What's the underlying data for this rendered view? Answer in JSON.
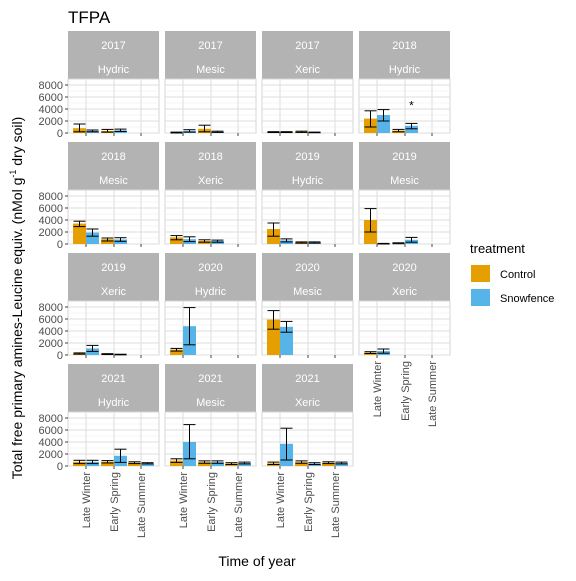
{
  "chart_data": {
    "type": "bar",
    "title": "TFPA",
    "xlabel": "Time of year",
    "ylabel_main": "Total free primary amines-Leucine equiv. (nMol g",
    "ylabel_sup": "-1",
    "ylabel_tail": " dry soil)",
    "categories": [
      "Late Winter",
      "Early Spring",
      "Late Summer"
    ],
    "y_ticks": [
      0,
      2000,
      4000,
      6000,
      8000
    ],
    "ylim": [
      0,
      9000
    ],
    "grid": true,
    "legend": {
      "title": "treatment",
      "position": "right",
      "entries": [
        {
          "label": "Control",
          "color": "#E69F00"
        },
        {
          "label": "Snowfence",
          "color": "#56B4E9"
        }
      ]
    },
    "strip_color": "#b3b3b3",
    "panels": [
      {
        "year": "2017",
        "site": "Hydric",
        "control": [
          {
            "v": 800,
            "lo": 200,
            "hi": 1500
          },
          {
            "v": 350,
            "lo": 150,
            "hi": 600
          },
          null
        ],
        "snowfence": [
          {
            "v": 350,
            "lo": 200,
            "hi": 500
          },
          {
            "v": 450,
            "lo": 250,
            "hi": 650
          },
          null
        ]
      },
      {
        "year": "2017",
        "site": "Mesic",
        "control": [
          {
            "v": 80,
            "lo": 0,
            "hi": 150
          },
          {
            "v": 700,
            "lo": 200,
            "hi": 1300
          },
          null
        ],
        "snowfence": [
          {
            "v": 350,
            "lo": 150,
            "hi": 550
          },
          {
            "v": 200,
            "lo": 100,
            "hi": 300
          },
          null
        ]
      },
      {
        "year": "2017",
        "site": "Xeric",
        "control": [
          {
            "v": 150,
            "lo": 80,
            "hi": 220
          },
          {
            "v": 200,
            "lo": 100,
            "hi": 300
          },
          null
        ],
        "snowfence": [
          {
            "v": 150,
            "lo": 80,
            "hi": 220
          },
          {
            "v": 100,
            "lo": 50,
            "hi": 150
          },
          null
        ]
      },
      {
        "year": "2018",
        "site": "Hydric",
        "control": [
          {
            "v": 2400,
            "lo": 1000,
            "hi": 3700
          },
          {
            "v": 400,
            "lo": 200,
            "hi": 600
          },
          null
        ],
        "snowfence": [
          {
            "v": 3000,
            "lo": 2000,
            "hi": 3900
          },
          {
            "v": 1200,
            "lo": 700,
            "hi": 1600
          },
          null
        ],
        "annotation": {
          "text": "*",
          "category": 1,
          "value": 4400
        }
      },
      {
        "year": "2018",
        "site": "Mesic",
        "control": [
          {
            "v": 3400,
            "lo": 2900,
            "hi": 3800
          },
          {
            "v": 800,
            "lo": 500,
            "hi": 1000
          },
          null
        ],
        "snowfence": [
          {
            "v": 1900,
            "lo": 1300,
            "hi": 2500
          },
          {
            "v": 750,
            "lo": 450,
            "hi": 1050
          },
          null
        ]
      },
      {
        "year": "2018",
        "site": "Xeric",
        "control": [
          {
            "v": 1100,
            "lo": 700,
            "hi": 1400
          },
          {
            "v": 500,
            "lo": 300,
            "hi": 700
          },
          null
        ],
        "snowfence": [
          {
            "v": 800,
            "lo": 400,
            "hi": 1200
          },
          {
            "v": 500,
            "lo": 300,
            "hi": 650
          },
          null
        ]
      },
      {
        "year": "2019",
        "site": "Hydric",
        "control": [
          {
            "v": 2500,
            "lo": 1300,
            "hi": 3500
          },
          {
            "v": 250,
            "lo": 150,
            "hi": 350
          },
          null
        ],
        "snowfence": [
          {
            "v": 600,
            "lo": 350,
            "hi": 850
          },
          {
            "v": 250,
            "lo": 150,
            "hi": 350
          },
          null
        ]
      },
      {
        "year": "2019",
        "site": "Mesic",
        "control": [
          {
            "v": 4000,
            "lo": 2000,
            "hi": 5900
          },
          {
            "v": 100,
            "lo": 50,
            "hi": 200
          },
          null
        ],
        "snowfence": [
          {
            "v": 50,
            "lo": 0,
            "hi": 100
          },
          {
            "v": 700,
            "lo": 300,
            "hi": 1100
          },
          null
        ]
      },
      {
        "year": "2019",
        "site": "Xeric",
        "control": [
          {
            "v": 250,
            "lo": 150,
            "hi": 350
          },
          {
            "v": 150,
            "lo": 80,
            "hi": 220
          },
          null
        ],
        "snowfence": [
          {
            "v": 1100,
            "lo": 600,
            "hi": 1600
          },
          {
            "v": 80,
            "lo": 30,
            "hi": 130
          },
          null
        ]
      },
      {
        "year": "2020",
        "site": "Hydric",
        "control": [
          {
            "v": 900,
            "lo": 650,
            "hi": 1100
          },
          null,
          null
        ],
        "snowfence": [
          {
            "v": 4800,
            "lo": 1700,
            "hi": 7900
          },
          null,
          null
        ]
      },
      {
        "year": "2020",
        "site": "Mesic",
        "control": [
          {
            "v": 5900,
            "lo": 4300,
            "hi": 7400
          },
          null,
          null
        ],
        "snowfence": [
          {
            "v": 4700,
            "lo": 3800,
            "hi": 5600
          },
          null,
          null
        ]
      },
      {
        "year": "2020",
        "site": "Xeric",
        "control": [
          {
            "v": 400,
            "lo": 250,
            "hi": 550
          },
          null,
          null
        ],
        "snowfence": [
          {
            "v": 650,
            "lo": 300,
            "hi": 1000
          },
          null,
          null
        ]
      },
      {
        "year": "2021",
        "site": "Hydric",
        "control": [
          {
            "v": 700,
            "lo": 400,
            "hi": 950
          },
          {
            "v": 700,
            "lo": 500,
            "hi": 900
          },
          {
            "v": 550,
            "lo": 400,
            "hi": 700
          }
        ],
        "snowfence": [
          {
            "v": 700,
            "lo": 400,
            "hi": 950
          },
          {
            "v": 1700,
            "lo": 600,
            "hi": 2800
          },
          {
            "v": 450,
            "lo": 350,
            "hi": 550
          }
        ]
      },
      {
        "year": "2021",
        "site": "Mesic",
        "control": [
          {
            "v": 900,
            "lo": 600,
            "hi": 1200
          },
          {
            "v": 650,
            "lo": 450,
            "hi": 850
          },
          {
            "v": 400,
            "lo": 250,
            "hi": 550
          }
        ],
        "snowfence": [
          {
            "v": 4000,
            "lo": 1200,
            "hi": 6900
          },
          {
            "v": 650,
            "lo": 450,
            "hi": 850
          },
          {
            "v": 500,
            "lo": 350,
            "hi": 650
          }
        ]
      },
      {
        "year": "2021",
        "site": "Xeric",
        "control": [
          {
            "v": 450,
            "lo": 250,
            "hi": 650
          },
          {
            "v": 650,
            "lo": 450,
            "hi": 850
          },
          {
            "v": 550,
            "lo": 400,
            "hi": 700
          }
        ],
        "snowfence": [
          {
            "v": 3700,
            "lo": 1000,
            "hi": 6300
          },
          {
            "v": 400,
            "lo": 250,
            "hi": 550
          },
          {
            "v": 500,
            "lo": 350,
            "hi": 650
          }
        ]
      }
    ]
  }
}
